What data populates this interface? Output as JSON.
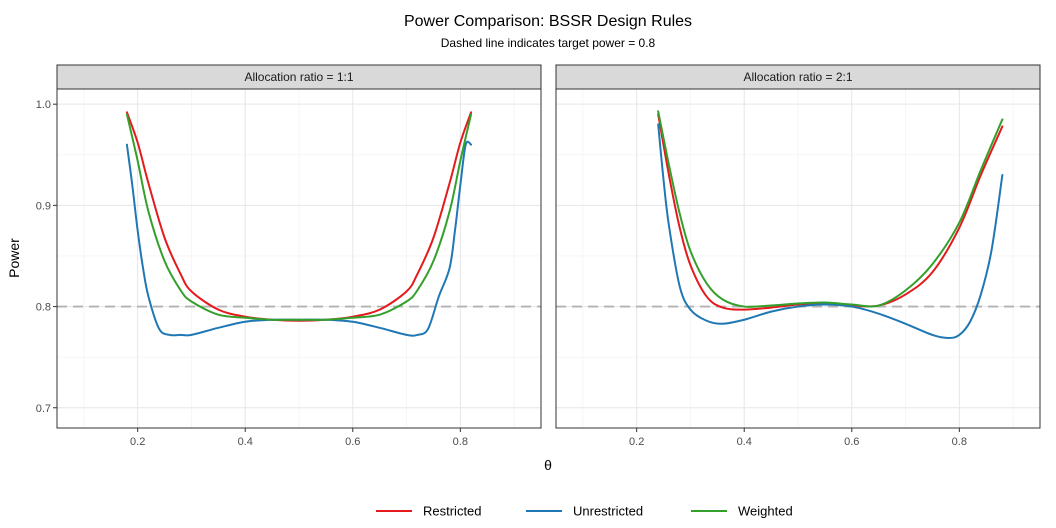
{
  "chart_data": {
    "type": "line",
    "title": "Power Comparison: BSSR Design Rules",
    "subtitle": "Dashed line indicates target power = 0.8",
    "xlabel": "θ",
    "ylabel": "Power",
    "xlim": [
      0.05,
      0.95
    ],
    "ylim": [
      0.68,
      1.015
    ],
    "xticks": [
      0.2,
      0.4,
      0.6,
      0.8
    ],
    "xtick_labels": [
      "0.2",
      "0.4",
      "0.6",
      "0.8"
    ],
    "yticks": [
      0.7,
      0.8,
      0.9,
      1.0
    ],
    "ytick_labels": [
      "0.7",
      "0.8",
      "0.9",
      "1.0"
    ],
    "reference_line": {
      "y": 0.8,
      "style": "dashed",
      "color": "#b3b3b3"
    },
    "grid": true,
    "legend_position": "bottom",
    "colors": {
      "Restricted": "#e41a1c",
      "Unrestricted": "#1f78b4",
      "Weighted": "#33a02c"
    },
    "panels": [
      {
        "strip": "Allocation ratio = 1:1",
        "series": [
          {
            "name": "Restricted",
            "x": [
              0.18,
              0.2,
              0.22,
              0.25,
              0.28,
              0.3,
              0.35,
              0.4,
              0.45,
              0.5,
              0.55,
              0.6,
              0.65,
              0.7,
              0.72,
              0.75,
              0.78,
              0.8,
              0.82
            ],
            "values": [
              0.992,
              0.962,
              0.922,
              0.868,
              0.832,
              0.815,
              0.797,
              0.79,
              0.787,
              0.786,
              0.787,
              0.79,
              0.797,
              0.815,
              0.832,
              0.868,
              0.922,
              0.962,
              0.992
            ]
          },
          {
            "name": "Unrestricted",
            "x": [
              0.18,
              0.19,
              0.2,
              0.21,
              0.22,
              0.24,
              0.26,
              0.28,
              0.3,
              0.35,
              0.4,
              0.45,
              0.5,
              0.55,
              0.6,
              0.65,
              0.7,
              0.72,
              0.74,
              0.76,
              0.78,
              0.79,
              0.8,
              0.81,
              0.82
            ],
            "values": [
              0.96,
              0.92,
              0.875,
              0.838,
              0.81,
              0.778,
              0.772,
              0.772,
              0.772,
              0.779,
              0.785,
              0.787,
              0.787,
              0.787,
              0.785,
              0.779,
              0.772,
              0.772,
              0.778,
              0.81,
              0.838,
              0.875,
              0.92,
              0.96,
              0.96
            ]
          },
          {
            "name": "Weighted",
            "x": [
              0.18,
              0.2,
              0.22,
              0.25,
              0.28,
              0.3,
              0.35,
              0.4,
              0.45,
              0.5,
              0.55,
              0.6,
              0.65,
              0.7,
              0.72,
              0.75,
              0.78,
              0.8,
              0.82
            ],
            "values": [
              0.99,
              0.944,
              0.894,
              0.845,
              0.816,
              0.805,
              0.792,
              0.789,
              0.787,
              0.787,
              0.787,
              0.789,
              0.792,
              0.805,
              0.816,
              0.845,
              0.894,
              0.944,
              0.99
            ]
          }
        ]
      },
      {
        "strip": "Allocation ratio = 2:1",
        "series": [
          {
            "name": "Restricted",
            "x": [
              0.24,
              0.26,
              0.28,
              0.3,
              0.33,
              0.36,
              0.4,
              0.45,
              0.5,
              0.55,
              0.6,
              0.65,
              0.7,
              0.75,
              0.8,
              0.84,
              0.88
            ],
            "values": [
              0.99,
              0.93,
              0.878,
              0.841,
              0.81,
              0.799,
              0.797,
              0.799,
              0.802,
              0.803,
              0.801,
              0.801,
              0.812,
              0.834,
              0.878,
              0.93,
              0.978
            ]
          },
          {
            "name": "Unrestricted",
            "x": [
              0.24,
              0.25,
              0.26,
              0.28,
              0.3,
              0.33,
              0.36,
              0.4,
              0.45,
              0.5,
              0.55,
              0.6,
              0.65,
              0.7,
              0.75,
              0.78,
              0.8,
              0.82,
              0.84,
              0.86,
              0.88
            ],
            "values": [
              0.98,
              0.925,
              0.88,
              0.82,
              0.797,
              0.786,
              0.783,
              0.787,
              0.795,
              0.8,
              0.802,
              0.8,
              0.793,
              0.783,
              0.772,
              0.769,
              0.772,
              0.785,
              0.812,
              0.856,
              0.93
            ]
          },
          {
            "name": "Weighted",
            "x": [
              0.24,
              0.26,
              0.28,
              0.3,
              0.33,
              0.36,
              0.4,
              0.45,
              0.5,
              0.55,
              0.6,
              0.65,
              0.7,
              0.75,
              0.8,
              0.84,
              0.88
            ],
            "values": [
              0.993,
              0.94,
              0.892,
              0.855,
              0.823,
              0.807,
              0.8,
              0.801,
              0.803,
              0.804,
              0.802,
              0.801,
              0.816,
              0.842,
              0.883,
              0.935,
              0.985
            ]
          }
        ]
      }
    ]
  }
}
